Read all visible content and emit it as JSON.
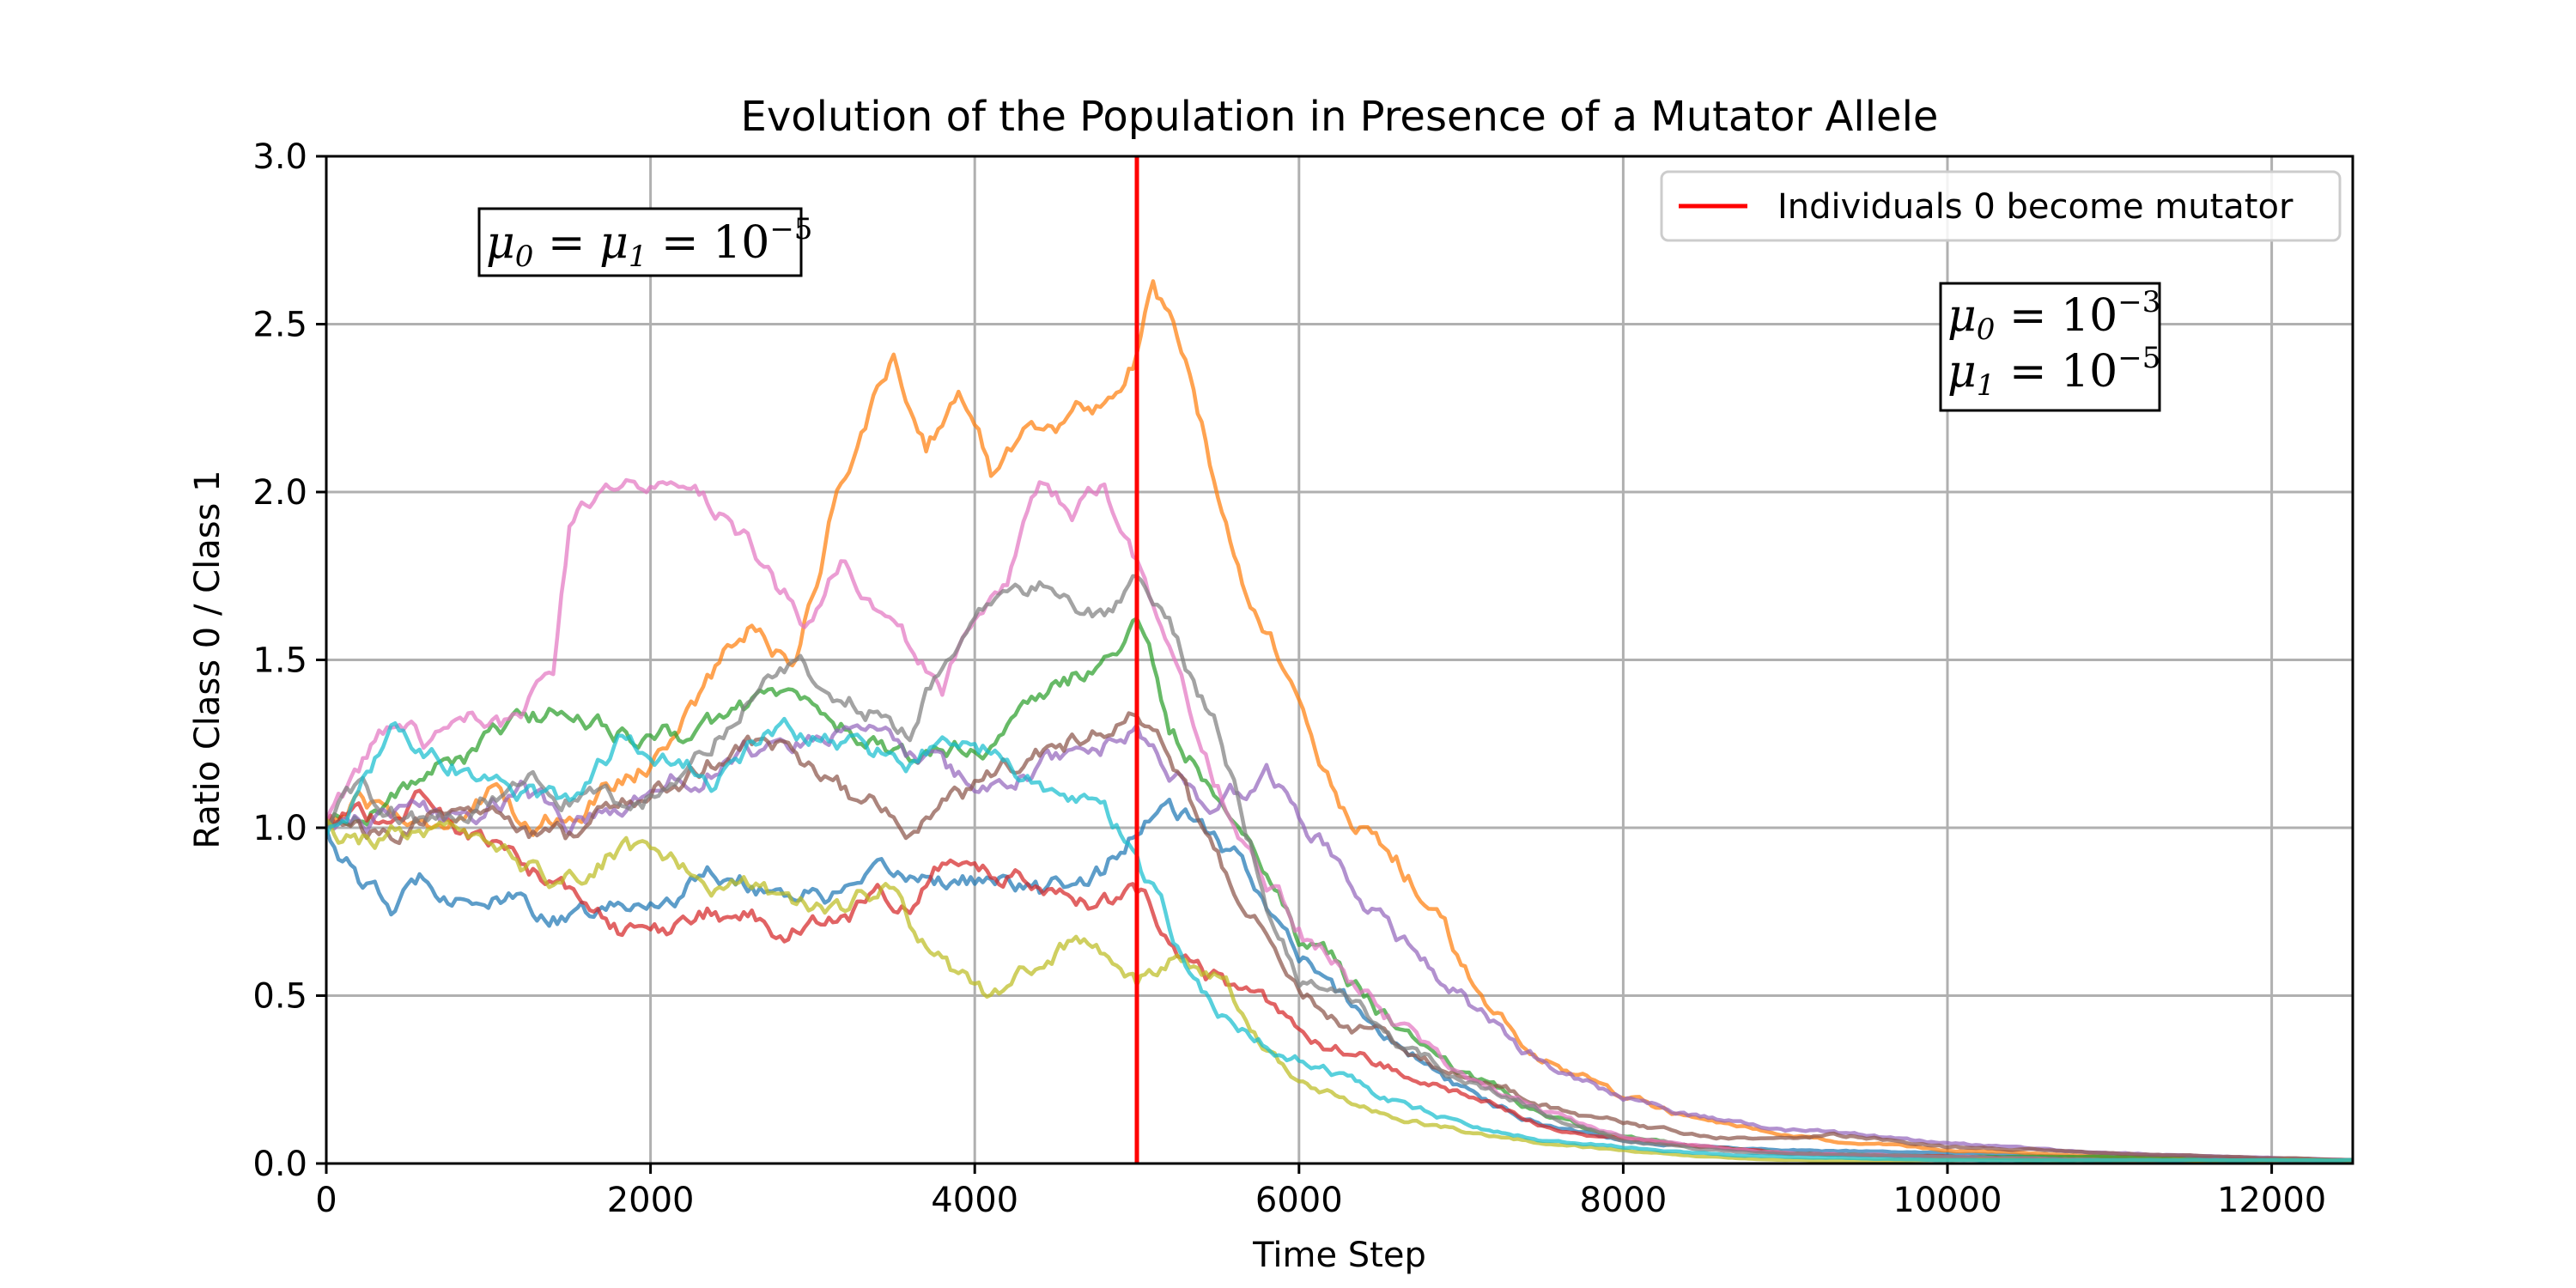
{
  "chart_data": {
    "type": "line",
    "title": "Evolution of the Population in Presence of a Mutator Allele",
    "xlabel": "Time Step",
    "ylabel": "Ratio Class 0 / Class 1",
    "xlim": [
      0,
      12500
    ],
    "ylim": [
      0,
      3.0
    ],
    "xticks": [
      "0",
      "2000",
      "4000",
      "6000",
      "8000",
      "10000",
      "12000"
    ],
    "yticks": [
      "0.0",
      "0.5",
      "1.0",
      "1.5",
      "2.0",
      "2.5",
      "3.0"
    ],
    "grid": true,
    "legend": {
      "placement": "top-right",
      "entries": [
        "Individuals 0 become mutator"
      ]
    },
    "vline": {
      "x": 5000,
      "label": "Individuals 0 become mutator",
      "color": "#ff0000"
    },
    "annotations": [
      {
        "lines": [
          {
            "a": "μ",
            "asub": "0",
            "eq1": " = ",
            "b": "μ",
            "bsub": "1",
            "eq2": " = 10",
            "sup": "−5"
          }
        ],
        "position": "top-left"
      },
      {
        "lines": [
          {
            "a": "μ",
            "asub": "0",
            "eq": " = 10",
            "sup": "−3"
          },
          {
            "a": "μ",
            "asub": "1",
            "eq": " = 10",
            "sup": "−5"
          }
        ],
        "position": "top-right"
      }
    ],
    "series": [
      {
        "color": "#1f77b4",
        "x": [
          0,
          200,
          400,
          600,
          800,
          1000,
          1200,
          1500,
          1800,
          2000,
          2400,
          2800,
          3200,
          3600,
          4000,
          4400,
          4800,
          5000,
          5200,
          5500,
          5800,
          6000,
          6500,
          7000,
          7500,
          8000,
          8500,
          9000,
          10000,
          11000,
          12500
        ],
        "y": [
          1.0,
          0.85,
          0.75,
          0.85,
          0.82,
          0.8,
          0.77,
          0.72,
          0.75,
          0.77,
          0.88,
          0.82,
          0.8,
          0.85,
          0.85,
          0.8,
          0.88,
          1.0,
          1.05,
          0.95,
          0.8,
          0.6,
          0.4,
          0.22,
          0.12,
          0.07,
          0.05,
          0.04,
          0.03,
          0.02,
          0.01
        ]
      },
      {
        "color": "#ff7f0e",
        "x": [
          0,
          200,
          400,
          600,
          800,
          1000,
          1200,
          1500,
          1800,
          2000,
          2300,
          2600,
          2900,
          3100,
          3300,
          3500,
          3700,
          3900,
          4100,
          4300,
          4500,
          4700,
          4900,
          5000,
          5100,
          5300,
          5500,
          5700,
          5900,
          6100,
          6300,
          6500,
          6700,
          7000,
          7300,
          7600,
          8000,
          8500,
          9000,
          10000,
          11000,
          12500
        ],
        "y": [
          1.0,
          1.1,
          1.05,
          1.0,
          1.05,
          1.1,
          1.0,
          1.05,
          1.15,
          1.2,
          1.4,
          1.6,
          1.5,
          1.9,
          2.2,
          2.4,
          2.15,
          2.3,
          2.05,
          2.2,
          2.2,
          2.25,
          2.3,
          2.4,
          2.6,
          2.4,
          2.0,
          1.7,
          1.5,
          1.2,
          1.0,
          0.95,
          0.85,
          0.6,
          0.4,
          0.3,
          0.2,
          0.12,
          0.08,
          0.04,
          0.02,
          0.01
        ]
      },
      {
        "color": "#2ca02c",
        "x": [
          0,
          200,
          400,
          600,
          800,
          1000,
          1200,
          1500,
          1800,
          2000,
          2400,
          2800,
          3200,
          3600,
          4000,
          4400,
          4800,
          5000,
          5200,
          5500,
          5800,
          6000,
          6500,
          7000,
          7500,
          8000,
          8500,
          9000,
          10000,
          11000,
          12500
        ],
        "y": [
          1.0,
          1.05,
          1.1,
          1.15,
          1.2,
          1.25,
          1.3,
          1.35,
          1.3,
          1.25,
          1.3,
          1.4,
          1.3,
          1.2,
          1.25,
          1.35,
          1.5,
          1.6,
          1.3,
          1.1,
          0.9,
          0.7,
          0.45,
          0.28,
          0.15,
          0.08,
          0.05,
          0.03,
          0.02,
          0.02,
          0.01
        ]
      },
      {
        "color": "#d62728",
        "x": [
          0,
          200,
          400,
          600,
          800,
          1000,
          1200,
          1500,
          1800,
          2000,
          2400,
          2800,
          3200,
          3600,
          3800,
          4000,
          4400,
          4800,
          5000,
          5200,
          5500,
          5800,
          6000,
          6500,
          7000,
          7500,
          8000,
          8500,
          9000,
          10000,
          11000,
          12500
        ],
        "y": [
          1.0,
          1.05,
          1.0,
          1.1,
          1.0,
          0.95,
          0.9,
          0.8,
          0.7,
          0.65,
          0.75,
          0.7,
          0.75,
          0.8,
          0.9,
          0.85,
          0.85,
          0.8,
          0.8,
          0.7,
          0.55,
          0.45,
          0.38,
          0.3,
          0.2,
          0.12,
          0.07,
          0.05,
          0.03,
          0.02,
          0.01,
          0.01
        ]
      },
      {
        "color": "#9467bd",
        "x": [
          0,
          200,
          400,
          600,
          800,
          1000,
          1200,
          1500,
          1800,
          2000,
          2400,
          2800,
          3200,
          3600,
          4000,
          4400,
          4800,
          5000,
          5200,
          5500,
          5800,
          6000,
          6500,
          7000,
          7500,
          8000,
          8500,
          9000,
          9300,
          10000,
          11000,
          12500
        ],
        "y": [
          1.0,
          1.05,
          1.0,
          1.05,
          1.0,
          1.05,
          1.1,
          1.0,
          1.05,
          1.1,
          1.2,
          1.25,
          1.3,
          1.2,
          1.1,
          1.2,
          1.25,
          1.3,
          1.15,
          1.05,
          1.15,
          1.05,
          0.75,
          0.5,
          0.3,
          0.2,
          0.14,
          0.1,
          0.09,
          0.06,
          0.03,
          0.01
        ]
      },
      {
        "color": "#8c564b",
        "x": [
          0,
          200,
          400,
          600,
          800,
          1000,
          1200,
          1500,
          1800,
          2000,
          2400,
          2800,
          3200,
          3600,
          4000,
          4400,
          4800,
          5000,
          5200,
          5500,
          5800,
          6000,
          6500,
          7000,
          7500,
          8000,
          8500,
          9000,
          9300,
          10000,
          11000,
          12500
        ],
        "y": [
          1.0,
          1.0,
          0.95,
          1.0,
          1.1,
          1.05,
          1.0,
          0.95,
          1.05,
          1.1,
          1.2,
          1.25,
          1.1,
          1.0,
          1.1,
          1.2,
          1.3,
          1.35,
          1.2,
          0.9,
          0.65,
          0.5,
          0.38,
          0.27,
          0.18,
          0.12,
          0.08,
          0.07,
          0.09,
          0.05,
          0.03,
          0.01
        ]
      },
      {
        "color": "#e377c2",
        "x": [
          0,
          200,
          400,
          600,
          800,
          1000,
          1200,
          1400,
          1500,
          1600,
          1800,
          2000,
          2200,
          2400,
          2600,
          2800,
          3000,
          3200,
          3400,
          3600,
          3800,
          4000,
          4200,
          4400,
          4600,
          4800,
          5000,
          5200,
          5400,
          5600,
          5800,
          6000,
          6500,
          7000,
          7500,
          8000,
          8500,
          9000,
          10000,
          11000,
          12500
        ],
        "y": [
          1.0,
          1.15,
          1.3,
          1.25,
          1.3,
          1.35,
          1.3,
          1.45,
          1.9,
          1.95,
          2.0,
          2.05,
          1.95,
          1.95,
          1.85,
          1.7,
          1.6,
          1.8,
          1.6,
          1.5,
          1.4,
          1.6,
          1.7,
          2.0,
          1.95,
          2.05,
          1.8,
          1.55,
          1.2,
          1.0,
          0.8,
          0.7,
          0.45,
          0.25,
          0.15,
          0.08,
          0.05,
          0.03,
          0.02,
          0.01,
          0.01
        ]
      },
      {
        "color": "#7f7f7f",
        "x": [
          0,
          200,
          400,
          600,
          800,
          1000,
          1200,
          1500,
          1800,
          2000,
          2400,
          2800,
          3200,
          3600,
          4000,
          4400,
          4800,
          5000,
          5200,
          5500,
          5800,
          6000,
          6500,
          7000,
          7500,
          8000,
          8500,
          9000,
          10000,
          11000,
          12500
        ],
        "y": [
          1.0,
          1.1,
          1.05,
          1.0,
          1.05,
          1.1,
          1.15,
          1.1,
          1.05,
          1.1,
          1.3,
          1.5,
          1.4,
          1.3,
          1.7,
          1.7,
          1.6,
          1.7,
          1.6,
          1.3,
          0.8,
          0.55,
          0.4,
          0.25,
          0.15,
          0.07,
          0.04,
          0.03,
          0.02,
          0.01,
          0.01
        ]
      },
      {
        "color": "#bcbd22",
        "x": [
          0,
          200,
          400,
          600,
          800,
          1000,
          1200,
          1500,
          1800,
          2000,
          2400,
          2800,
          3200,
          3500,
          3700,
          3900,
          4100,
          4300,
          4500,
          4700,
          4900,
          5000,
          5200,
          5500,
          5800,
          6000,
          6500,
          7000,
          7500,
          8000,
          8500,
          9000,
          10000,
          11000,
          12500
        ],
        "y": [
          1.0,
          0.95,
          1.0,
          0.95,
          0.95,
          0.9,
          0.85,
          0.85,
          0.95,
          0.9,
          0.85,
          0.8,
          0.75,
          0.85,
          0.65,
          0.55,
          0.48,
          0.55,
          0.62,
          0.65,
          0.6,
          0.55,
          0.6,
          0.6,
          0.35,
          0.25,
          0.15,
          0.1,
          0.06,
          0.04,
          0.02,
          0.01,
          0.01,
          0.01,
          0.01
        ]
      },
      {
        "color": "#17becf",
        "x": [
          0,
          200,
          400,
          600,
          800,
          1000,
          1200,
          1500,
          1800,
          2000,
          2400,
          2800,
          3200,
          3600,
          4000,
          4400,
          4800,
          5000,
          5200,
          5500,
          5800,
          6000,
          6500,
          7000,
          7500,
          8000,
          8500,
          9000,
          10000,
          11000,
          12500
        ],
        "y": [
          1.0,
          1.1,
          1.3,
          1.25,
          1.2,
          1.15,
          1.1,
          1.05,
          1.25,
          1.2,
          1.15,
          1.3,
          1.25,
          1.2,
          1.3,
          1.1,
          1.05,
          0.9,
          0.7,
          0.45,
          0.35,
          0.32,
          0.2,
          0.12,
          0.07,
          0.05,
          0.03,
          0.02,
          0.01,
          0.01,
          0.01
        ]
      }
    ]
  }
}
